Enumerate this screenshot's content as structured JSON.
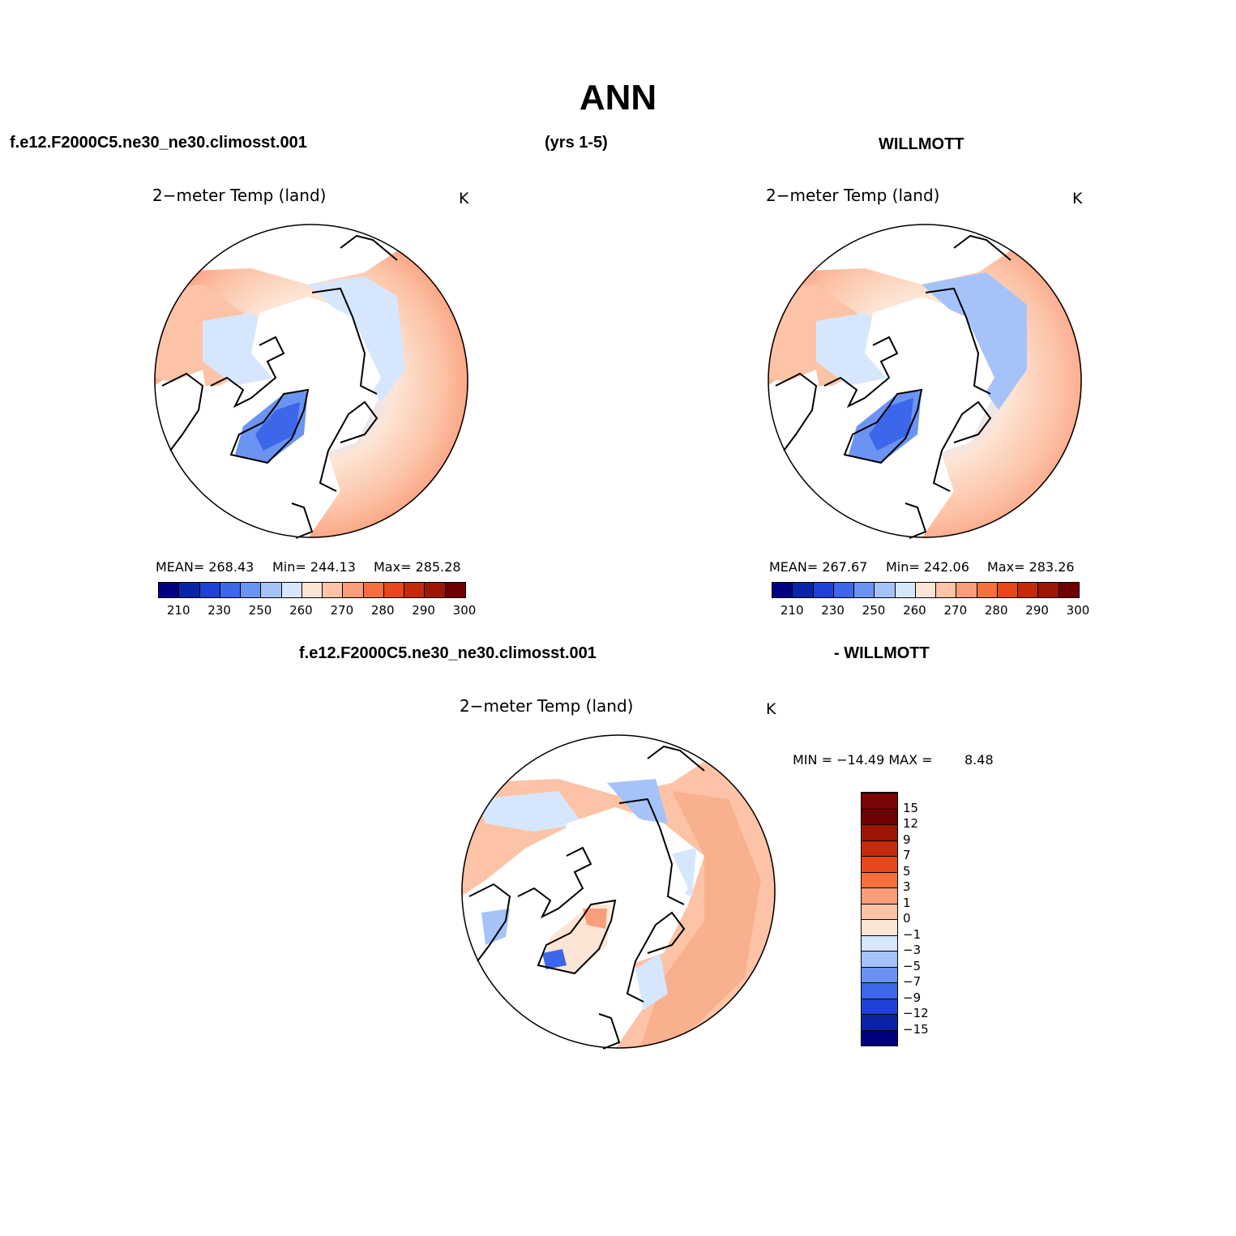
{
  "figure": {
    "title": "ANN",
    "case_label": "f.e12.F2000C5.ne30_ne30.climosst.001",
    "years": "(yrs 1-5)",
    "obs_label": "WILLMOTT",
    "diff_case_label": "f.e12.F2000C5.ne30_ne30.climosst.001",
    "diff_obs_label": "- WILLMOTT"
  },
  "panels": {
    "model": {
      "title": "2−meter Temp (land)",
      "units": "K",
      "mean": "MEAN= 268.43",
      "min": "Min= 244.13",
      "max": "Max= 285.28"
    },
    "obs": {
      "title": "2−meter Temp (land)",
      "units": "K",
      "mean": "MEAN= 267.67",
      "min": "Min= 242.06",
      "max": "Max= 283.26"
    },
    "diff": {
      "title": "2−meter Temp (land)",
      "units": "K",
      "minmax": "MIN = −14.49 MAX =",
      "max_value": "8.48"
    }
  },
  "colorbar_abs": {
    "colors": [
      "#000080",
      "#0a24a8",
      "#1f42d6",
      "#3c67ea",
      "#6b93f2",
      "#a5c3f9",
      "#d6e7fd",
      "#fde5d5",
      "#fcc3a7",
      "#f99d7a",
      "#f5703f",
      "#e8461b",
      "#c52a0b",
      "#9d1604",
      "#6e0000"
    ],
    "labels": [
      "210",
      "230",
      "250",
      "260",
      "270",
      "280",
      "290",
      "300"
    ]
  },
  "colorbar_diff": {
    "colors": [
      "#000080",
      "#0a24a8",
      "#1f42d6",
      "#3c67ea",
      "#6b93f2",
      "#a5c3f9",
      "#d6e7fd",
      "#fde5d5",
      "#fcc3a7",
      "#f99d7a",
      "#f5703f",
      "#e8461b",
      "#c52a0b",
      "#9d1604",
      "#6e0000",
      "#7a0505"
    ],
    "labels": [
      "15",
      "12",
      "9",
      "7",
      "5",
      "3",
      "1",
      "0",
      "−1",
      "−3",
      "−5",
      "−7",
      "−9",
      "−12",
      "−15"
    ]
  }
}
